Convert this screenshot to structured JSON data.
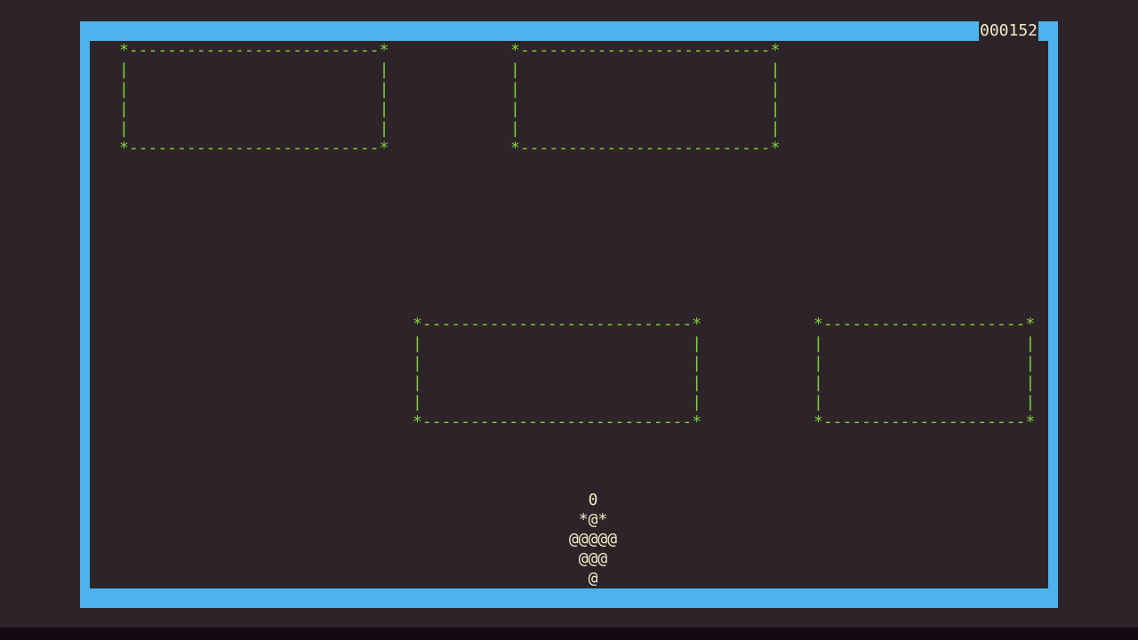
{
  "score": "000152",
  "colors": {
    "border": "#4cb3ee",
    "background": "#2d2429",
    "barrier": "#7fd13a",
    "ship": "#f3ecc8"
  },
  "barriers": [
    {
      "lines": [
        "*--------------------------*",
        "|                          |",
        "|                          |",
        "|                          |",
        "|                          |",
        "*--------------------------*"
      ]
    },
    {
      "lines": [
        "*--------------------------*",
        "|                          |",
        "|                          |",
        "|                          |",
        "|                          |",
        "*--------------------------*"
      ]
    },
    {
      "lines": [
        "*----------------------------*",
        "|                            |",
        "|                            |",
        "|                            |",
        "|                            |",
        "*----------------------------*"
      ]
    },
    {
      "lines": [
        "*---------------------*",
        "|                     |",
        "|                     |",
        "|                     |",
        "|                     |",
        "*---------------------*"
      ]
    }
  ],
  "player_ship": {
    "lines": [
      "0",
      "*@*",
      "@@@@@",
      "@@@",
      "@"
    ]
  }
}
